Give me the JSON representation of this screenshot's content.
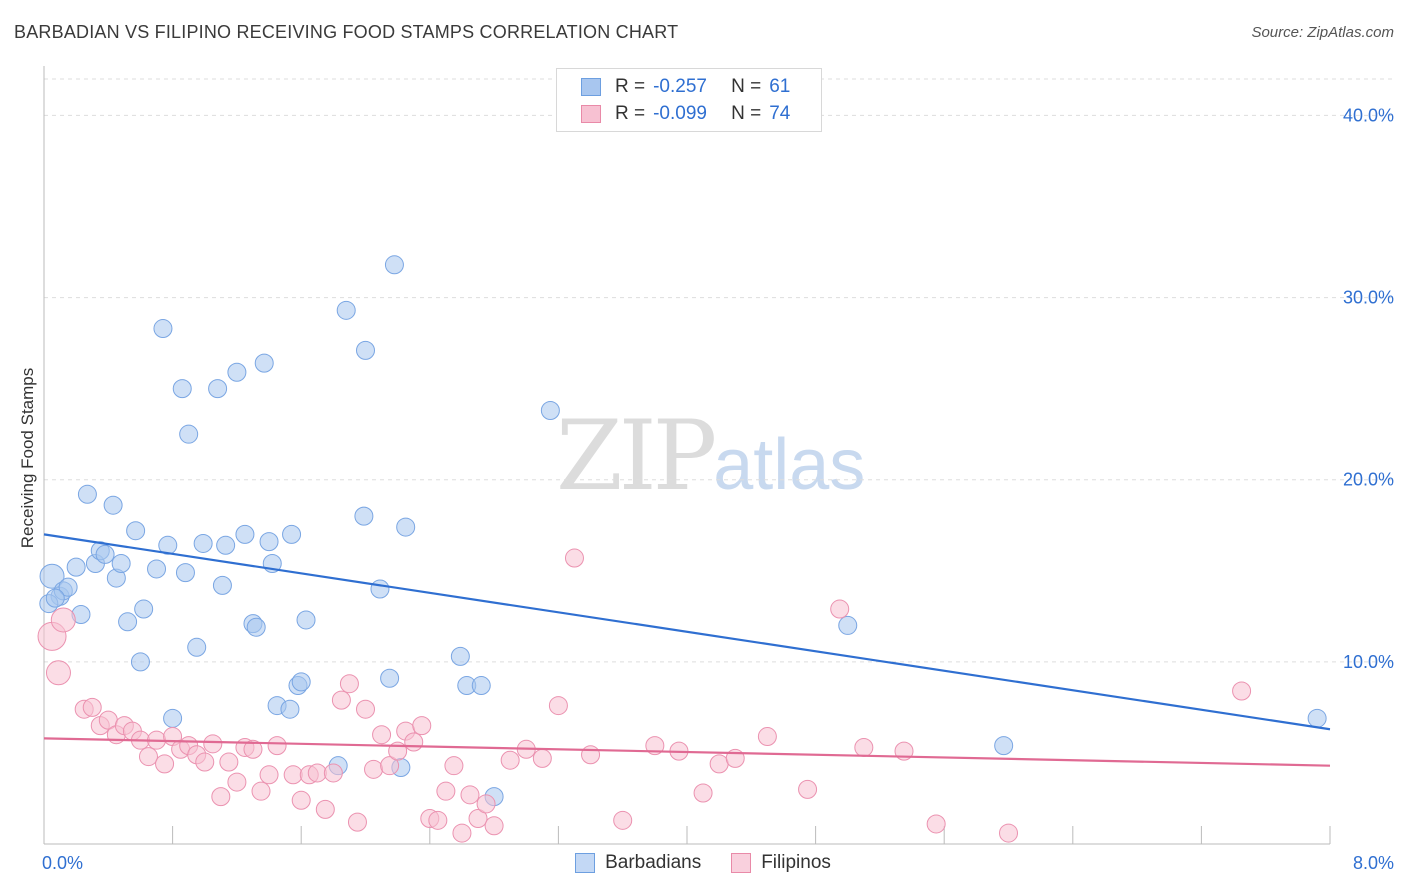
{
  "title": "BARBADIAN VS FILIPINO RECEIVING FOOD STAMPS CORRELATION CHART",
  "source": "Source: ZipAtlas.com",
  "watermark": {
    "zip": "ZIP",
    "atlas": "atlas"
  },
  "legend": {
    "rows": [
      {
        "r_label": "R =",
        "r_value": "-0.257",
        "n_label": "N =",
        "n_value": "61",
        "color": "#a8c6ef",
        "border": "#6d9fe0"
      },
      {
        "r_label": "R =",
        "r_value": "-0.099",
        "n_label": "N =",
        "n_value": "74",
        "color": "#f7c1d2",
        "border": "#e98aa8"
      }
    ]
  },
  "bottom_legend": [
    {
      "label": "Barbadians",
      "color": "#c3d8f5",
      "border": "#6d9fe0"
    },
    {
      "label": "Filipinos",
      "color": "#f9d0dd",
      "border": "#e98aa8"
    }
  ],
  "chart_data": {
    "type": "scatter",
    "title": "BARBADIAN VS FILIPINO RECEIVING FOOD STAMPS CORRELATION CHART",
    "xlabel": "",
    "ylabel": "Receiving Food Stamps",
    "xlim": [
      0,
      8
    ],
    "ylim": [
      0,
      42
    ],
    "x_tick_labels": [
      "0.0%",
      "8.0%"
    ],
    "y_ticks": [
      10,
      20,
      30,
      40
    ],
    "y_tick_labels": [
      "10.0%",
      "20.0%",
      "30.0%",
      "40.0%"
    ],
    "grid": true,
    "colors": {
      "barbadians": "#2f6fd1",
      "filipinos": "#e06a93",
      "axis_text": "#2f6fd1"
    },
    "series": [
      {
        "name": "Barbadians",
        "color": "#a8c6ef",
        "trend": {
          "x": [
            0,
            8
          ],
          "y": [
            17.0,
            6.3
          ]
        },
        "points": [
          [
            0.05,
            14.7
          ],
          [
            0.1,
            13.6
          ],
          [
            0.12,
            13.9
          ],
          [
            0.15,
            14.1
          ],
          [
            0.2,
            15.2
          ],
          [
            0.23,
            12.6
          ],
          [
            0.27,
            19.2
          ],
          [
            0.32,
            15.4
          ],
          [
            0.35,
            16.1
          ],
          [
            0.38,
            15.9
          ],
          [
            0.43,
            18.6
          ],
          [
            0.45,
            14.6
          ],
          [
            0.48,
            15.4
          ],
          [
            0.52,
            12.2
          ],
          [
            0.57,
            17.2
          ],
          [
            0.62,
            12.9
          ],
          [
            0.6,
            10.0
          ],
          [
            0.7,
            15.1
          ],
          [
            0.74,
            28.3
          ],
          [
            0.77,
            16.4
          ],
          [
            0.8,
            6.9
          ],
          [
            0.86,
            25.0
          ],
          [
            0.88,
            14.9
          ],
          [
            0.9,
            22.5
          ],
          [
            0.95,
            10.8
          ],
          [
            0.99,
            16.5
          ],
          [
            1.08,
            25.0
          ],
          [
            1.11,
            14.2
          ],
          [
            1.13,
            16.4
          ],
          [
            1.2,
            25.9
          ],
          [
            1.25,
            17.0
          ],
          [
            1.3,
            12.1
          ],
          [
            1.32,
            11.9
          ],
          [
            1.37,
            26.4
          ],
          [
            1.4,
            16.6
          ],
          [
            1.42,
            15.4
          ],
          [
            1.45,
            7.6
          ],
          [
            1.53,
            7.4
          ],
          [
            1.54,
            17.0
          ],
          [
            1.58,
            8.7
          ],
          [
            1.6,
            8.9
          ],
          [
            1.63,
            12.3
          ],
          [
            1.83,
            4.3
          ],
          [
            1.88,
            29.3
          ],
          [
            1.99,
            18.0
          ],
          [
            2.0,
            27.1
          ],
          [
            2.09,
            14.0
          ],
          [
            2.15,
            9.1
          ],
          [
            2.18,
            31.8
          ],
          [
            2.22,
            4.2
          ],
          [
            2.25,
            17.4
          ],
          [
            2.59,
            10.3
          ],
          [
            2.63,
            8.7
          ],
          [
            2.72,
            8.7
          ],
          [
            2.8,
            2.6
          ],
          [
            3.15,
            23.8
          ],
          [
            5.0,
            12.0
          ],
          [
            5.97,
            5.4
          ],
          [
            7.92,
            6.9
          ],
          [
            0.03,
            13.2
          ],
          [
            0.07,
            13.5
          ]
        ]
      },
      {
        "name": "Filipinos",
        "color": "#f7c1d2",
        "trend": {
          "x": [
            0,
            8
          ],
          "y": [
            5.8,
            4.3
          ]
        },
        "points": [
          [
            0.05,
            11.4
          ],
          [
            0.09,
            9.4
          ],
          [
            0.12,
            12.3
          ],
          [
            0.25,
            7.4
          ],
          [
            0.3,
            7.5
          ],
          [
            0.35,
            6.5
          ],
          [
            0.4,
            6.8
          ],
          [
            0.45,
            6.0
          ],
          [
            0.5,
            6.5
          ],
          [
            0.55,
            6.2
          ],
          [
            0.6,
            5.7
          ],
          [
            0.65,
            4.8
          ],
          [
            0.7,
            5.7
          ],
          [
            0.75,
            4.4
          ],
          [
            0.8,
            5.9
          ],
          [
            0.85,
            5.2
          ],
          [
            0.9,
            5.4
          ],
          [
            0.95,
            4.9
          ],
          [
            1.0,
            4.5
          ],
          [
            1.05,
            5.5
          ],
          [
            1.1,
            2.6
          ],
          [
            1.15,
            4.5
          ],
          [
            1.2,
            3.4
          ],
          [
            1.25,
            5.3
          ],
          [
            1.3,
            5.2
          ],
          [
            1.35,
            2.9
          ],
          [
            1.4,
            3.8
          ],
          [
            1.45,
            5.4
          ],
          [
            1.55,
            3.8
          ],
          [
            1.6,
            2.4
          ],
          [
            1.65,
            3.8
          ],
          [
            1.7,
            3.9
          ],
          [
            1.75,
            1.9
          ],
          [
            1.8,
            3.9
          ],
          [
            1.85,
            7.9
          ],
          [
            1.9,
            8.8
          ],
          [
            1.95,
            1.2
          ],
          [
            2.0,
            7.4
          ],
          [
            2.05,
            4.1
          ],
          [
            2.1,
            6.0
          ],
          [
            2.15,
            4.3
          ],
          [
            2.2,
            5.1
          ],
          [
            2.25,
            6.2
          ],
          [
            2.3,
            5.6
          ],
          [
            2.35,
            6.5
          ],
          [
            2.4,
            1.4
          ],
          [
            2.45,
            1.3
          ],
          [
            2.5,
            2.9
          ],
          [
            2.55,
            4.3
          ],
          [
            2.6,
            0.6
          ],
          [
            2.65,
            2.7
          ],
          [
            2.7,
            1.4
          ],
          [
            2.75,
            2.2
          ],
          [
            2.8,
            1.0
          ],
          [
            2.9,
            4.6
          ],
          [
            3.0,
            5.2
          ],
          [
            3.1,
            4.7
          ],
          [
            3.2,
            7.6
          ],
          [
            3.3,
            15.7
          ],
          [
            3.4,
            4.9
          ],
          [
            3.6,
            1.3
          ],
          [
            3.8,
            5.4
          ],
          [
            3.95,
            5.1
          ],
          [
            4.1,
            2.8
          ],
          [
            4.2,
            4.4
          ],
          [
            4.3,
            4.7
          ],
          [
            4.5,
            5.9
          ],
          [
            4.75,
            3.0
          ],
          [
            4.95,
            12.9
          ],
          [
            5.1,
            5.3
          ],
          [
            5.35,
            5.1
          ],
          [
            5.55,
            1.1
          ],
          [
            6.0,
            0.6
          ],
          [
            7.45,
            8.4
          ]
        ]
      }
    ]
  }
}
